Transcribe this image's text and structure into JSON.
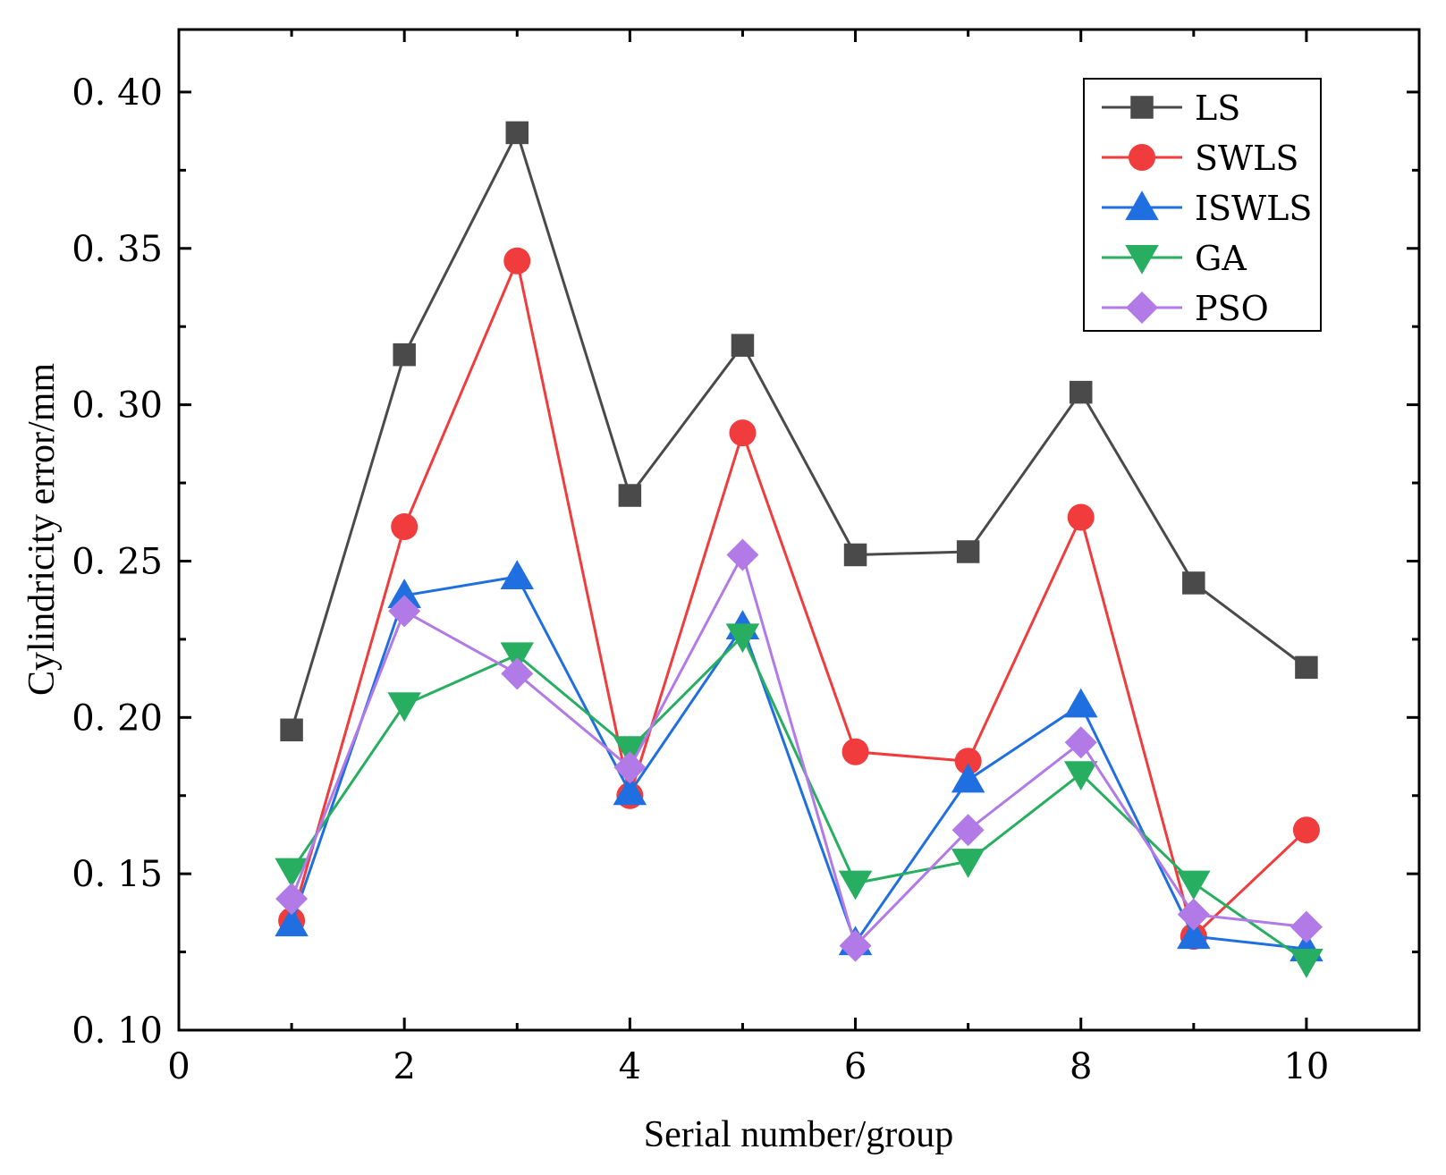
{
  "chart_data": {
    "type": "line",
    "title": "",
    "xlabel": "Serial number/group",
    "ylabel": "Cylindricity error/mm",
    "xlim": [
      0,
      11
    ],
    "ylim": [
      0.1,
      0.42
    ],
    "x_ticks": [
      0,
      2,
      4,
      6,
      8,
      10
    ],
    "x_tick_labels": [
      "0",
      "2",
      "4",
      "6",
      "8",
      "10"
    ],
    "y_ticks": [
      0.1,
      0.15,
      0.2,
      0.25,
      0.3,
      0.35,
      0.4
    ],
    "y_tick_labels": [
      "0. 10",
      "0. 15",
      "0. 20",
      "0. 25",
      "0. 30",
      "0. 35",
      "0. 40"
    ],
    "grid": false,
    "legend_position": "top-right",
    "x": [
      1,
      2,
      3,
      4,
      5,
      6,
      7,
      8,
      9,
      10
    ],
    "series": [
      {
        "name": "LS",
        "color": "#4a4a4a",
        "marker": "square",
        "values": [
          0.196,
          0.316,
          0.387,
          0.271,
          0.319,
          0.252,
          0.253,
          0.304,
          0.243,
          0.216
        ]
      },
      {
        "name": "SWLS",
        "color": "#f03c3c",
        "marker": "circle",
        "values": [
          0.135,
          0.261,
          0.346,
          0.175,
          0.291,
          0.189,
          0.186,
          0.264,
          0.13,
          0.164
        ]
      },
      {
        "name": "ISWLS",
        "color": "#1f6fe0",
        "marker": "triangle-up",
        "values": [
          0.134,
          0.239,
          0.245,
          0.176,
          0.229,
          0.128,
          0.18,
          0.204,
          0.13,
          0.126
        ]
      },
      {
        "name": "GA",
        "color": "#27ae60",
        "marker": "triangle-down",
        "values": [
          0.151,
          0.204,
          0.22,
          0.19,
          0.226,
          0.147,
          0.154,
          0.182,
          0.147,
          0.122
        ]
      },
      {
        "name": "PSO",
        "color": "#b27ae6",
        "marker": "diamond",
        "values": [
          0.142,
          0.234,
          0.214,
          0.184,
          0.252,
          0.127,
          0.164,
          0.192,
          0.137,
          0.133
        ]
      }
    ]
  }
}
